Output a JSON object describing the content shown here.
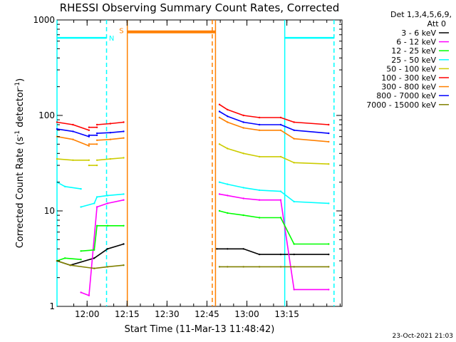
{
  "chart_data": {
    "type": "line",
    "title": "RHESSI Observing Summary Count Rates, Corrected",
    "xlabel": "Start Time (11-Mar-13 11:48:42)",
    "ylabel_main": "Corrected Count Rate (s",
    "ylabel_sup1": "-1",
    "ylabel_mid": " detector",
    "ylabel_sup2": "-1",
    "ylabel_end": ")",
    "y_scale": "log",
    "ylim": [
      1,
      1000
    ],
    "xlim_minutes": [
      0,
      107
    ],
    "x_ticks": [
      {
        "label": "12:00",
        "minutes": 11.3
      },
      {
        "label": "12:15",
        "minutes": 26.3
      },
      {
        "label": "12:30",
        "minutes": 41.3
      },
      {
        "label": "12:45",
        "minutes": 56.3
      },
      {
        "label": "13:00",
        "minutes": 71.3
      },
      {
        "label": "13:15",
        "minutes": 86.3
      }
    ],
    "y_ticks": [
      {
        "label": "1000",
        "value": 1000
      },
      {
        "label": "100",
        "value": 100
      },
      {
        "label": "10",
        "value": 10
      },
      {
        "label": "1",
        "value": 1
      }
    ],
    "legend_header_1": "Det 1,3,4,5,6,9,",
    "legend_header_2": "Att 0",
    "legend_position": "right",
    "grid": false,
    "series": [
      {
        "name": "3 - 6 keV",
        "color": "#000000",
        "segments": [
          {
            "x": [
              0,
              5,
              14,
              19,
              25
            ],
            "y": [
              3,
              2.7,
              3.2,
              4,
              4.5
            ]
          },
          {
            "x": [
              60,
              64,
              70,
              76,
              84,
              89,
              102
            ],
            "y": [
              4,
              4,
              4,
              3.5,
              3.5,
              3.5,
              3.5
            ]
          }
        ]
      },
      {
        "name": "6 - 12 keV",
        "color": "#ff00ff",
        "segments": [
          {
            "x": [
              9,
              12,
              15,
              19,
              25
            ],
            "y": [
              1.4,
              1.3,
              11,
              12,
              13
            ]
          },
          {
            "x": [
              61,
              64,
              70,
              76,
              84,
              89,
              102
            ],
            "y": [
              15,
              14.5,
              13.5,
              13,
              13,
              1.5,
              1.5
            ]
          }
        ]
      },
      {
        "name": "12 - 25 keV",
        "color": "#00ff00",
        "segments": [
          {
            "x": [
              0,
              3,
              9
            ],
            "y": [
              3,
              3.2,
              3.1
            ]
          },
          {
            "x": [
              9,
              14,
              15,
              19,
              25
            ],
            "y": [
              3.8,
              3.9,
              7,
              7,
              7
            ]
          },
          {
            "x": [
              61,
              64,
              70,
              76,
              84,
              89,
              102
            ],
            "y": [
              10,
              9.5,
              9,
              8.5,
              8.5,
              4.5,
              4.5
            ]
          }
        ]
      },
      {
        "name": "25 - 50 keV",
        "color": "#00ffff",
        "segments": [
          {
            "x": [
              0,
              3,
              9
            ],
            "y": [
              20,
              18,
              17
            ]
          },
          {
            "x": [
              9,
              14,
              15,
              19,
              25
            ],
            "y": [
              11,
              12,
              14,
              14.5,
              15
            ]
          },
          {
            "x": [
              61,
              64,
              70,
              76,
              84,
              89,
              102
            ],
            "y": [
              20,
              19,
              17.5,
              16.5,
              16,
              12.5,
              12
            ]
          }
        ]
      },
      {
        "name": "50 - 100 keV",
        "color": "#cccc00",
        "segments": [
          {
            "x": [
              0,
              6,
              12
            ],
            "y": [
              35,
              34,
              34
            ]
          },
          {
            "x": [
              12,
              15
            ],
            "y": [
              30,
              30
            ]
          },
          {
            "x": [
              15,
              20,
              25
            ],
            "y": [
              34,
              35,
              36
            ]
          },
          {
            "x": [
              61,
              64,
              70,
              76,
              84,
              89,
              102
            ],
            "y": [
              50,
              45,
              40,
              37,
              37,
              32,
              31
            ]
          }
        ]
      },
      {
        "name": "100 - 300 keV",
        "color": "#ff0000",
        "segments": [
          {
            "x": [
              0,
              6,
              12
            ],
            "y": [
              85,
              80,
              70
            ]
          },
          {
            "x": [
              12,
              15
            ],
            "y": [
              75,
              75
            ]
          },
          {
            "x": [
              15,
              20,
              25
            ],
            "y": [
              80,
              82,
              85
            ]
          },
          {
            "x": [
              61,
              64,
              70,
              76,
              84,
              89,
              102
            ],
            "y": [
              130,
              115,
              100,
              95,
              95,
              85,
              80
            ]
          }
        ]
      },
      {
        "name": "300 - 800 keV",
        "color": "#ff8000",
        "segments": [
          {
            "x": [
              0,
              6,
              12
            ],
            "y": [
              60,
              56,
              48
            ]
          },
          {
            "x": [
              12,
              15
            ],
            "y": [
              50,
              50
            ]
          },
          {
            "x": [
              15,
              20,
              25
            ],
            "y": [
              55,
              56,
              58
            ]
          },
          {
            "x": [
              61,
              64,
              70,
              76,
              84,
              89,
              102
            ],
            "y": [
              95,
              85,
              74,
              70,
              70,
              57,
              53
            ]
          },
          {
            "x": [
              26.4,
              59.5
            ],
            "y": [
              750,
              750
            ]
          }
        ]
      },
      {
        "name": "800 - 7000 keV",
        "color": "#0000ff",
        "segments": [
          {
            "x": [
              0,
              6,
              12
            ],
            "y": [
              72,
              68,
              60
            ]
          },
          {
            "x": [
              12,
              15
            ],
            "y": [
              62,
              62
            ]
          },
          {
            "x": [
              15,
              20,
              25
            ],
            "y": [
              65,
              66,
              68
            ]
          },
          {
            "x": [
              61,
              64,
              70,
              76,
              84,
              89,
              102
            ],
            "y": [
              110,
              98,
              85,
              80,
              80,
              70,
              65
            ]
          }
        ]
      },
      {
        "name": "7000 - 15000 keV",
        "color": "#808000",
        "segments": [
          {
            "x": [
              0,
              5,
              14,
              19,
              25
            ],
            "y": [
              3,
              2.7,
              2.5,
              2.6,
              2.7
            ]
          },
          {
            "x": [
              61,
              64,
              70,
              76,
              84,
              89,
              102
            ],
            "y": [
              2.6,
              2.6,
              2.6,
              2.6,
              2.6,
              2.6,
              2.6
            ]
          }
        ]
      }
    ],
    "markers": [
      {
        "x": 0,
        "color": "#00ffff",
        "style": "solid"
      },
      {
        "x": 26.4,
        "color": "#ff8000",
        "style": "solid"
      },
      {
        "x": 59.5,
        "color": "#ff8000",
        "style": "solid"
      },
      {
        "x": 18.6,
        "color": "#00ffff",
        "style": "dash"
      },
      {
        "x": 58.3,
        "color": "#ff8000",
        "style": "dash"
      },
      {
        "x": 85.5,
        "color": "#00ffff",
        "style": "solid"
      },
      {
        "x": 104,
        "color": "#00ffff",
        "style": "dash"
      }
    ],
    "bars": [
      {
        "x": [
          0,
          18.6
        ],
        "y": 650,
        "color": "#00ffff"
      },
      {
        "x": [
          85.5,
          104
        ],
        "y": 650,
        "color": "#00ffff"
      }
    ],
    "annotations": [
      {
        "text": "N",
        "x": 20.5,
        "y": 650,
        "color": "#00ffff"
      },
      {
        "text": "S",
        "x": 24.2,
        "y": 780,
        "color": "#ff8000"
      }
    ],
    "footer_date": "23-Oct-2021 21:03"
  }
}
